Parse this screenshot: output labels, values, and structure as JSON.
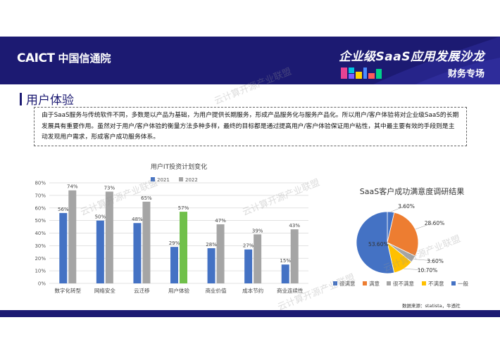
{
  "header": {
    "logo_en": "CAICT",
    "logo_cn": "中国信通院",
    "event_title": "企业级SaaS应用发展沙龙",
    "event_subtitle": "财务专场",
    "bg_color": "#1c1a72"
  },
  "section": {
    "title": "用户体验"
  },
  "intro": {
    "text": "由于SaaS服务与传统软件不同，多数是以产品为基础，为用户提供长期服务，形成产品服务化与服务产品化。所以用户/客户体验将对企业级SaaS的长期发展具有重要作用。虽然对于用户/客户体验的衡量方法多种多样，最终的目标都是通过提高用户/客户体验保证用户粘性，其中最主要有效的手段则是主动发现用户需求，形成客户成功服务体系。"
  },
  "watermark": {
    "text": "云计算开源产业联盟"
  },
  "chart_data": [
    {
      "type": "bar",
      "title": "用户IT投资计划变化",
      "categories": [
        "数字化转型",
        "网络安全",
        "云迁移",
        "用户体验",
        "商业价值",
        "成本节约",
        "商业连续性"
      ],
      "series": [
        {
          "name": "2021",
          "values": [
            56,
            50,
            48,
            29,
            28,
            27,
            15
          ],
          "value_labels": [
            "56%",
            "50%",
            "48%",
            "29%",
            "28%",
            "27%",
            "15%"
          ],
          "color": "#4472c4"
        },
        {
          "name": "2022",
          "values": [
            74,
            73,
            65,
            57,
            47,
            39,
            43
          ],
          "value_labels": [
            "74%",
            "73%",
            "65%",
            "57%",
            "47%",
            "39%",
            "43%"
          ],
          "color": "#a5a5a5"
        }
      ],
      "highlight": {
        "category": "用户体验",
        "series": "2022",
        "color": "#70c04a"
      },
      "ylim": [
        0,
        80
      ],
      "yticks": [
        "0%",
        "10%",
        "20%",
        "30%",
        "40%",
        "50%",
        "60%",
        "70%",
        "80%"
      ],
      "grid": true,
      "legend": "top"
    },
    {
      "type": "pie",
      "title": "SaaS客户成功满意度调研结果",
      "slices": [
        {
          "label": "很满意",
          "value": 3.6,
          "value_label": "3.60%",
          "color": "#4472c4"
        },
        {
          "label": "满意",
          "value": 28.6,
          "value_label": "28.60%",
          "color": "#ed7d31"
        },
        {
          "label": "很不满意",
          "value": 3.6,
          "value_label": "3.60%",
          "color": "#a5a5a5"
        },
        {
          "label": "不满意",
          "value": 10.7,
          "value_label": "10.70%",
          "color": "#ffc000"
        },
        {
          "label": "一般",
          "value": 53.6,
          "value_label": "53.60%",
          "color": "#4472c4"
        }
      ],
      "legend": "bottom"
    }
  ],
  "footer": {
    "source": "数据来源：statista，牛透社"
  }
}
